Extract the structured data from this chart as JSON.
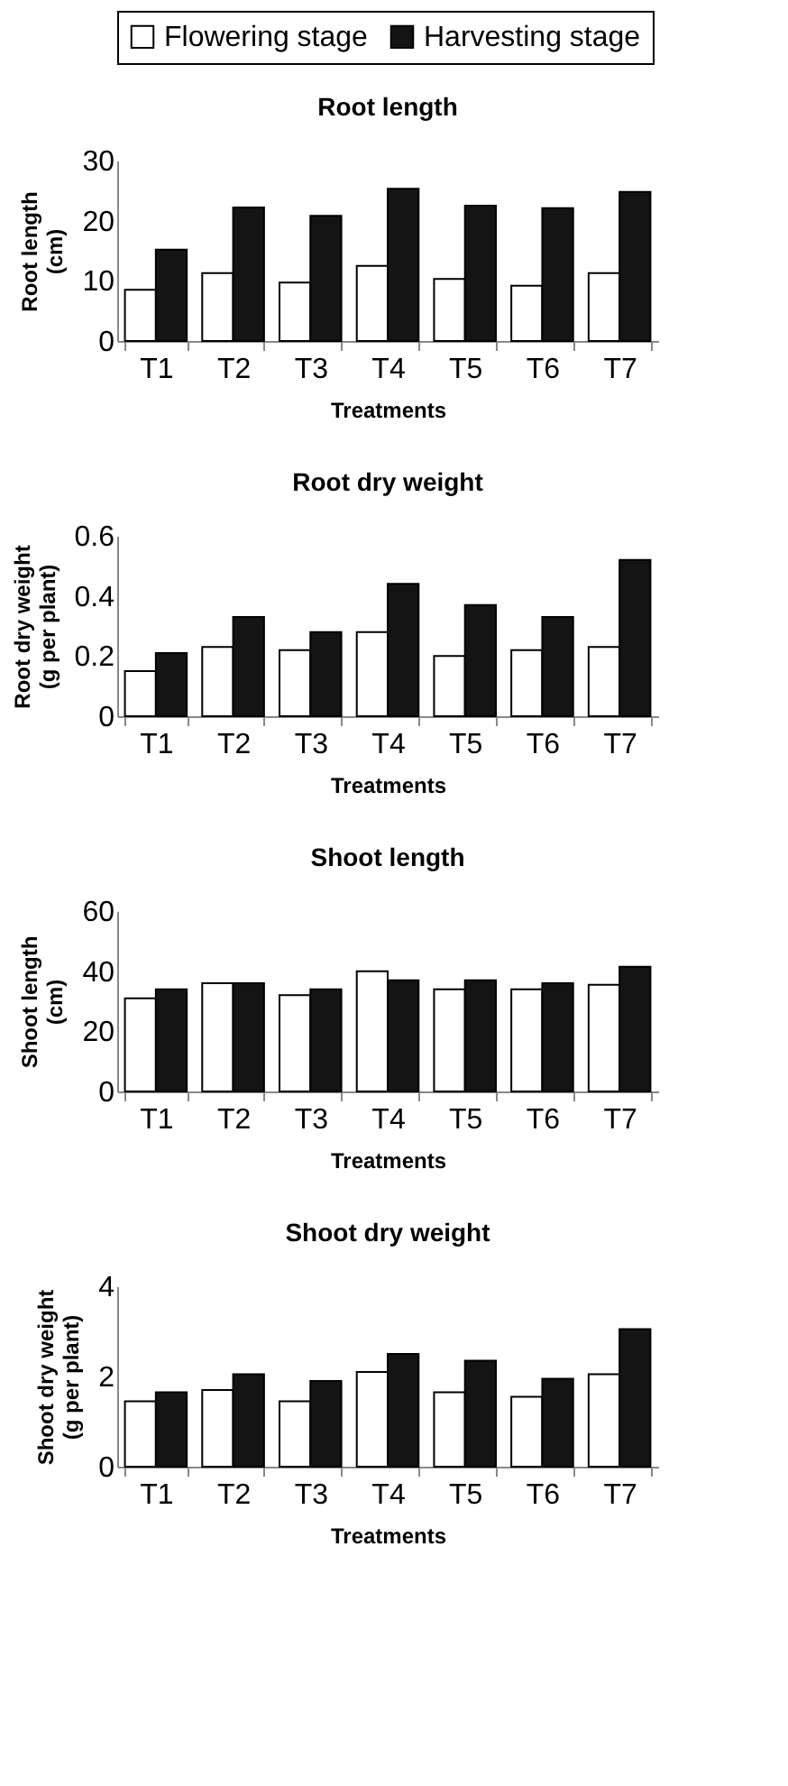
{
  "chart_data": [
    {
      "type": "bar",
      "title": "Root length",
      "xlabel": "Treatments",
      "ylabel": "Root length (cm)",
      "categories": [
        "T1",
        "T2",
        "T3",
        "T4",
        "T5",
        "T6",
        "T7"
      ],
      "ylim": [
        0,
        30
      ],
      "yticks": [
        0,
        10,
        20,
        30
      ],
      "grid": false,
      "legend": "top",
      "series": [
        {
          "name": "Flowering stage",
          "color": "#ffffff",
          "values": [
            8.5,
            11.3,
            9.7,
            12.5,
            10.3,
            9.2,
            11.3
          ]
        },
        {
          "name": "Harvesting stage",
          "color": "#141414",
          "values": [
            15.2,
            22.2,
            20.8,
            25.3,
            22.5,
            22.1,
            24.8
          ]
        }
      ]
    },
    {
      "type": "bar",
      "title": "Root dry weight",
      "xlabel": "Treatments",
      "ylabel": "Root dry weight (g per plant)",
      "categories": [
        "T1",
        "T2",
        "T3",
        "T4",
        "T5",
        "T6",
        "T7"
      ],
      "ylim": [
        0,
        0.6
      ],
      "yticks": [
        0,
        0.2,
        0.4,
        0.6
      ],
      "grid": false,
      "series": [
        {
          "color": "#ffffff",
          "values": [
            0.15,
            0.23,
            0.22,
            0.28,
            0.2,
            0.22,
            0.23
          ]
        },
        {
          "color": "#141414",
          "values": [
            0.21,
            0.33,
            0.28,
            0.44,
            0.37,
            0.33,
            0.52
          ]
        }
      ]
    },
    {
      "type": "bar",
      "title": "Shoot length",
      "xlabel": "Treatments",
      "ylabel": "Shoot length (cm)",
      "categories": [
        "T1",
        "T2",
        "T3",
        "T4",
        "T5",
        "T6",
        "T7"
      ],
      "ylim": [
        0,
        60
      ],
      "yticks": [
        0,
        20,
        40,
        60
      ],
      "grid": false,
      "series": [
        {
          "color": "#ffffff",
          "values": [
            31,
            36,
            32,
            40,
            34,
            34,
            35.5
          ]
        },
        {
          "color": "#141414",
          "values": [
            34,
            36,
            34,
            37,
            37,
            36,
            41.5
          ]
        }
      ]
    },
    {
      "type": "bar",
      "title": "Shoot dry weight",
      "xlabel": "Treatments",
      "ylabel": "Shoot dry weight (g per plant)",
      "categories": [
        "T1",
        "T2",
        "T3",
        "T4",
        "T5",
        "T6",
        "T7"
      ],
      "ylim": [
        0,
        4
      ],
      "yticks": [
        0,
        2,
        4
      ],
      "grid": false,
      "series": [
        {
          "color": "#ffffff",
          "values": [
            1.45,
            1.7,
            1.45,
            2.1,
            1.65,
            1.55,
            2.05
          ]
        },
        {
          "color": "#141414",
          "values": [
            1.65,
            2.05,
            1.9,
            2.5,
            2.35,
            1.95,
            3.05
          ]
        }
      ]
    }
  ]
}
